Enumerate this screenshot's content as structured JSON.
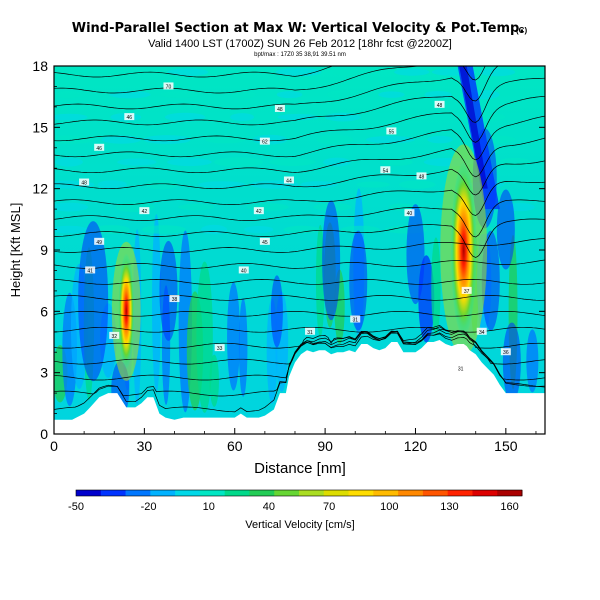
{
  "chart_data": {
    "type": "heatmap",
    "title": "Wind-Parallel Section at Max W: Vertical Velocity & Pot.Temp.",
    "title_mark": "(C)",
    "subtitle": "Valid 1400 LST (1700Z) SUN 26 Feb 2012 [18hr fcst @2200Z]",
    "sub2": "bpt/max : 17Z0 35 38,91 39.51 nm",
    "xlabel": "Distance [nm]",
    "ylabel": "Height [Kft MSL]",
    "xlim": [
      0,
      163
    ],
    "ylim": [
      0,
      18
    ],
    "xticks": [
      0,
      30,
      60,
      90,
      120,
      150
    ],
    "yticks": [
      0,
      3,
      6,
      9,
      12,
      15,
      18
    ],
    "colorbar": {
      "label": "Vertical Velocity [cm/s]",
      "tick_labels": [
        "-50",
        "-20",
        "10",
        "40",
        "70",
        "100",
        "130",
        "160"
      ],
      "colors": [
        "#0000cc",
        "#0033ff",
        "#0077ff",
        "#00b2ff",
        "#00d8e8",
        "#00e6c3",
        "#00d98a",
        "#22cc55",
        "#66d633",
        "#aadd22",
        "#dddd00",
        "#ffdd00",
        "#ffbb00",
        "#ff8800",
        "#ff5500",
        "#ff2200",
        "#dd0000",
        "#aa0000"
      ]
    },
    "terrain_kft": {
      "x": [
        0,
        6,
        10,
        12,
        15,
        18,
        21,
        24,
        26,
        27,
        29,
        31,
        33,
        35,
        37,
        40,
        43,
        46,
        48,
        50,
        52,
        55,
        57,
        60,
        62,
        64,
        66,
        68,
        70,
        73,
        75,
        77,
        78,
        80,
        82,
        84,
        86,
        88,
        90,
        92,
        94,
        96,
        98,
        100,
        102,
        104,
        106,
        108,
        110,
        112,
        114,
        116,
        118,
        120,
        122,
        124,
        126,
        128,
        130,
        132,
        134,
        136,
        137,
        138,
        140,
        142,
        144,
        146,
        148,
        150,
        153,
        155,
        158,
        160,
        163
      ],
      "h": [
        0.7,
        0.7,
        1.0,
        1.3,
        1.8,
        2.0,
        2.0,
        1.3,
        1.3,
        1.3,
        1.5,
        1.8,
        1.8,
        1.0,
        0.8,
        0.7,
        0.8,
        0.8,
        0.8,
        0.8,
        0.8,
        0.8,
        0.8,
        0.8,
        1.0,
        0.8,
        0.8,
        0.8,
        0.9,
        1.2,
        2.0,
        2.0,
        2.8,
        3.5,
        3.9,
        4.1,
        4.0,
        4.1,
        4.1,
        3.9,
        4.0,
        4.0,
        4.1,
        4.0,
        4.4,
        4.4,
        4.2,
        4.1,
        4.2,
        4.5,
        4.5,
        4.0,
        4.0,
        4.0,
        4.2,
        4.5,
        4.5,
        4.6,
        4.4,
        4.3,
        4.4,
        4.4,
        4.3,
        4.1,
        3.9,
        3.5,
        3.2,
        2.9,
        2.4,
        2.0,
        2.0,
        2.0,
        2.0,
        2.0,
        2.0
      ]
    },
    "updrafts": [
      {
        "x": 136,
        "y": 9.0,
        "w_cms": 180
      },
      {
        "x": 24,
        "y": 6.0,
        "w_cms": 130
      }
    ],
    "isentrope_labels": [
      "70",
      "48",
      "46",
      "48",
      "62",
      "55",
      "46",
      "44",
      "54",
      "48",
      "48",
      "42",
      "42",
      "40",
      "49",
      "45",
      "41",
      "40",
      "38",
      "37",
      "34",
      "32",
      "31",
      "31",
      "33",
      "36",
      "31"
    ]
  }
}
